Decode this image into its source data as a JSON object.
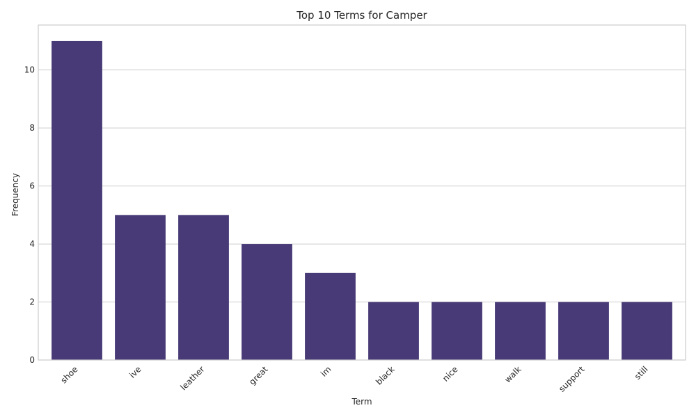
{
  "chart_data": {
    "type": "bar",
    "title": "Top 10 Terms for Camper",
    "xlabel": "Term",
    "ylabel": "Frequency",
    "categories": [
      "shoe",
      "ive",
      "leather",
      "great",
      "im",
      "black",
      "nice",
      "walk",
      "support",
      "still"
    ],
    "values": [
      11,
      5,
      5,
      4,
      3,
      2,
      2,
      2,
      2,
      2
    ],
    "ylim": [
      0,
      11.55
    ],
    "yticks": [
      0,
      2,
      4,
      6,
      8,
      10
    ],
    "ytick_labels": [
      "0",
      "2",
      "4",
      "6",
      "8",
      "10"
    ],
    "grid": "horizontal",
    "bar_color": "#483a77"
  }
}
